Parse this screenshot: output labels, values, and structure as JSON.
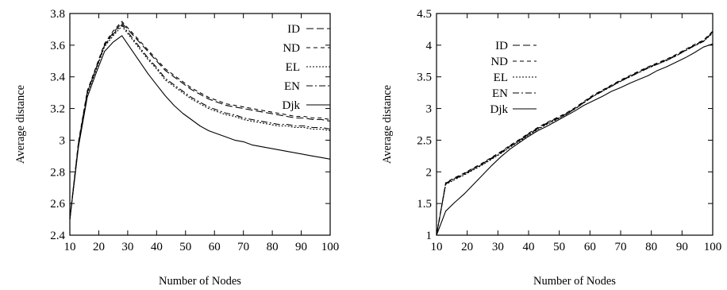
{
  "chart_data": [
    {
      "type": "line",
      "title": "",
      "xlabel": "Number of Nodes",
      "ylabel": "Average distance",
      "xlim": [
        10,
        100
      ],
      "ylim": [
        2.4,
        3.8
      ],
      "xticks": [
        10,
        20,
        30,
        40,
        50,
        60,
        70,
        80,
        90,
        100
      ],
      "yticks": [
        2.4,
        2.6,
        2.8,
        3.0,
        3.2,
        3.4,
        3.6,
        3.8
      ],
      "ytick_labels": [
        "2.4",
        "2.6",
        "2.8",
        "3",
        "3.2",
        "3.4",
        "3.6",
        "3.8"
      ],
      "grid": false,
      "legend": "top-right",
      "x": [
        10,
        13,
        16,
        19,
        22,
        25,
        28,
        31,
        34,
        37,
        40,
        43,
        46,
        49,
        52,
        55,
        58,
        61,
        64,
        67,
        70,
        73,
        76,
        79,
        82,
        85,
        88,
        91,
        94,
        97,
        100
      ],
      "series": [
        {
          "name": "ID",
          "dash": "9,4",
          "values": [
            2.5,
            2.98,
            3.3,
            3.45,
            3.6,
            3.68,
            3.74,
            3.68,
            3.62,
            3.56,
            3.5,
            3.44,
            3.4,
            3.36,
            3.32,
            3.29,
            3.26,
            3.24,
            3.22,
            3.21,
            3.2,
            3.19,
            3.18,
            3.17,
            3.16,
            3.15,
            3.14,
            3.14,
            3.13,
            3.13,
            3.12
          ]
        },
        {
          "name": "ND",
          "dash": "5,4",
          "values": [
            2.5,
            2.99,
            3.31,
            3.46,
            3.61,
            3.69,
            3.75,
            3.69,
            3.63,
            3.57,
            3.51,
            3.45,
            3.41,
            3.37,
            3.33,
            3.3,
            3.27,
            3.25,
            3.23,
            3.22,
            3.21,
            3.2,
            3.19,
            3.18,
            3.17,
            3.16,
            3.15,
            3.15,
            3.14,
            3.14,
            3.13
          ]
        },
        {
          "name": "EL",
          "dash": "2,2",
          "values": [
            2.5,
            2.97,
            3.29,
            3.44,
            3.59,
            3.66,
            3.72,
            3.65,
            3.58,
            3.51,
            3.45,
            3.38,
            3.34,
            3.3,
            3.26,
            3.23,
            3.2,
            3.18,
            3.16,
            3.15,
            3.13,
            3.12,
            3.11,
            3.1,
            3.09,
            3.09,
            3.08,
            3.08,
            3.07,
            3.07,
            3.06
          ]
        },
        {
          "name": "EN",
          "dash": "8,3,2,3",
          "values": [
            2.5,
            2.98,
            3.3,
            3.45,
            3.6,
            3.67,
            3.73,
            3.66,
            3.59,
            3.52,
            3.46,
            3.39,
            3.35,
            3.31,
            3.27,
            3.24,
            3.21,
            3.19,
            3.17,
            3.16,
            3.14,
            3.13,
            3.12,
            3.11,
            3.1,
            3.1,
            3.09,
            3.09,
            3.08,
            3.08,
            3.07
          ]
        },
        {
          "name": "Djk",
          "dash": "",
          "values": [
            2.5,
            2.96,
            3.27,
            3.42,
            3.56,
            3.62,
            3.66,
            3.58,
            3.5,
            3.42,
            3.35,
            3.28,
            3.22,
            3.17,
            3.13,
            3.09,
            3.06,
            3.04,
            3.02,
            3.0,
            2.99,
            2.97,
            2.96,
            2.95,
            2.94,
            2.93,
            2.92,
            2.91,
            2.9,
            2.89,
            2.88
          ]
        }
      ]
    },
    {
      "type": "line",
      "title": "",
      "xlabel": "Number of Nodes",
      "ylabel": "Average distance",
      "xlim": [
        10,
        100
      ],
      "ylim": [
        1,
        4.5
      ],
      "xticks": [
        10,
        20,
        30,
        40,
        50,
        60,
        70,
        80,
        90,
        100
      ],
      "yticks": [
        1,
        1.5,
        2,
        2.5,
        3,
        3.5,
        4,
        4.5
      ],
      "ytick_labels": [
        "1",
        "1.5",
        "2",
        "2.5",
        "3",
        "3.5",
        "4",
        "4.5"
      ],
      "grid": false,
      "legend": "top-left",
      "x": [
        10,
        13,
        16,
        19,
        22,
        25,
        28,
        31,
        34,
        37,
        40,
        43,
        46,
        49,
        52,
        55,
        58,
        61,
        64,
        67,
        70,
        73,
        76,
        79,
        82,
        85,
        88,
        91,
        94,
        97,
        100
      ],
      "series": [
        {
          "name": "ID",
          "dash": "9,4",
          "values": [
            1.0,
            1.82,
            1.9,
            1.97,
            2.05,
            2.13,
            2.22,
            2.31,
            2.41,
            2.5,
            2.6,
            2.69,
            2.77,
            2.84,
            2.91,
            3.0,
            3.1,
            3.2,
            3.28,
            3.36,
            3.44,
            3.51,
            3.58,
            3.65,
            3.71,
            3.77,
            3.84,
            3.92,
            4.0,
            4.07,
            4.2
          ]
        },
        {
          "name": "ND",
          "dash": "5,4",
          "values": [
            1.0,
            1.83,
            1.91,
            1.98,
            2.06,
            2.14,
            2.23,
            2.32,
            2.42,
            2.51,
            2.61,
            2.7,
            2.78,
            2.85,
            2.92,
            3.01,
            3.11,
            3.21,
            3.29,
            3.37,
            3.45,
            3.52,
            3.59,
            3.66,
            3.72,
            3.78,
            3.85,
            3.93,
            4.01,
            4.08,
            4.22
          ]
        },
        {
          "name": "EL",
          "dash": "2,2",
          "values": [
            1.0,
            1.8,
            1.88,
            1.95,
            2.03,
            2.11,
            2.2,
            2.29,
            2.39,
            2.48,
            2.58,
            2.67,
            2.75,
            2.82,
            2.9,
            2.99,
            3.09,
            3.19,
            3.27,
            3.35,
            3.43,
            3.5,
            3.57,
            3.64,
            3.7,
            3.76,
            3.83,
            3.91,
            3.99,
            4.06,
            4.19
          ]
        },
        {
          "name": "EN",
          "dash": "8,3,2,3",
          "values": [
            1.0,
            1.81,
            1.89,
            1.96,
            2.04,
            2.12,
            2.21,
            2.3,
            2.4,
            2.49,
            2.59,
            2.68,
            2.76,
            2.83,
            2.9,
            2.99,
            3.09,
            3.19,
            3.27,
            3.35,
            3.43,
            3.5,
            3.57,
            3.64,
            3.7,
            3.76,
            3.83,
            3.91,
            3.99,
            4.06,
            4.21
          ]
        },
        {
          "name": "Djk",
          "dash": "",
          "values": [
            1.0,
            1.38,
            1.52,
            1.65,
            1.8,
            1.95,
            2.1,
            2.24,
            2.36,
            2.46,
            2.56,
            2.65,
            2.72,
            2.8,
            2.88,
            2.96,
            3.05,
            3.12,
            3.19,
            3.27,
            3.33,
            3.4,
            3.46,
            3.52,
            3.6,
            3.66,
            3.73,
            3.8,
            3.88,
            3.97,
            4.02
          ]
        }
      ]
    }
  ]
}
